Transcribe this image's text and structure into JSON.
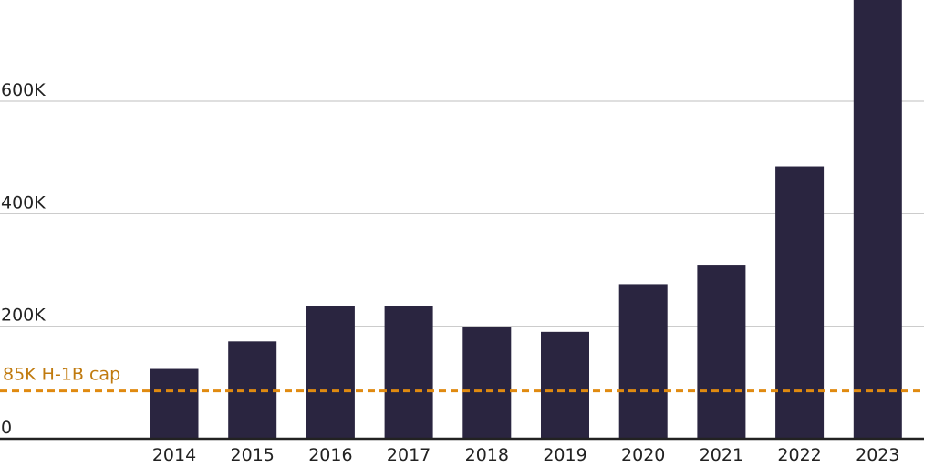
{
  "colors": {
    "bar": "#2a2540",
    "grid": "#cccccc",
    "axis": "#222222",
    "cap": "#e08a10",
    "cap_text": "#c07a0e"
  },
  "chart_data": {
    "type": "bar",
    "categories": [
      "2014",
      "2015",
      "2016",
      "2017",
      "2018",
      "2019",
      "2020",
      "2021",
      "2022",
      "2023"
    ],
    "values": [
      124000,
      173000,
      236000,
      236000,
      199000,
      190000,
      275000,
      308000,
      484000,
      780000
    ],
    "ylim": [
      0,
      780000
    ],
    "yticks": [
      0,
      200000,
      400000,
      600000
    ],
    "ytick_labels": [
      "0",
      "200K",
      "400K",
      "600K"
    ],
    "grid": true,
    "reference_line": {
      "value": 85000,
      "label": "85K H-1B cap",
      "style": "dashed"
    }
  }
}
